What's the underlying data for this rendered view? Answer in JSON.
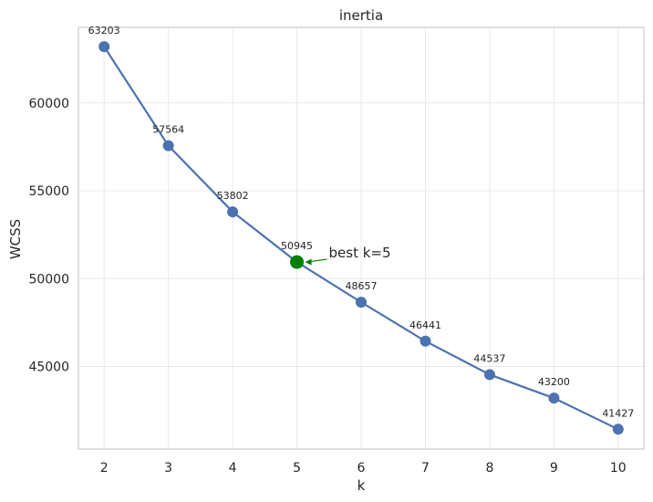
{
  "chart_data": {
    "type": "line",
    "title": "inertia",
    "xlabel": "k",
    "ylabel": "WCSS",
    "x": [
      2,
      3,
      4,
      5,
      6,
      7,
      8,
      9,
      10
    ],
    "series": [
      {
        "values": [
          63203,
          57564,
          53802,
          50945,
          48657,
          46441,
          44537,
          43200,
          41427
        ],
        "color": "#4c72b0"
      }
    ],
    "data_labels": [
      "63203",
      "57564",
      "53802",
      "50945",
      "48657",
      "46441",
      "44537",
      "43200",
      "41427"
    ],
    "xlim": [
      1.6,
      10.4
    ],
    "ylim": [
      40300,
      64300
    ],
    "x_ticks": [
      2,
      3,
      4,
      5,
      6,
      7,
      8,
      9,
      10
    ],
    "x_tick_labels": [
      "2",
      "3",
      "4",
      "5",
      "6",
      "7",
      "8",
      "9",
      "10"
    ],
    "y_ticks": [
      45000,
      50000,
      55000,
      60000
    ],
    "y_tick_labels": [
      "45000",
      "50000",
      "55000",
      "60000"
    ],
    "grid": true,
    "highlight": {
      "x": 5,
      "y": 50945,
      "color": "#008000"
    },
    "annotation": {
      "text": "best k=5",
      "x": 5,
      "y": 50945
    }
  }
}
